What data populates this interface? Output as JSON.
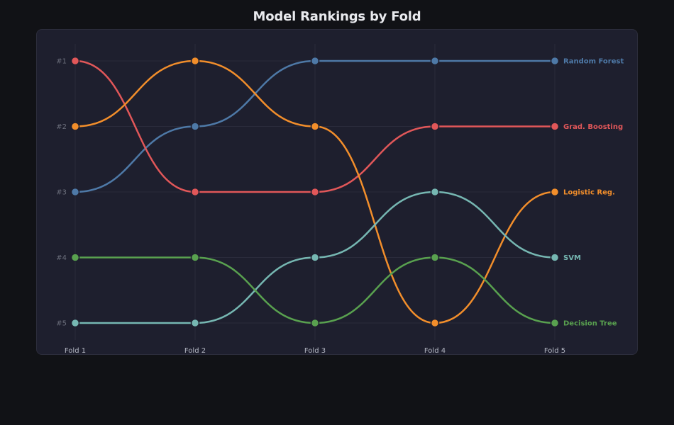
{
  "chart_data": {
    "type": "line",
    "subtype": "bump",
    "title": "Model Rankings by Fold",
    "categories": [
      "Fold 1",
      "Fold 2",
      "Fold 3",
      "Fold 4",
      "Fold 5"
    ],
    "y_ticks": [
      "#1",
      "#2",
      "#3",
      "#4",
      "#5"
    ],
    "ylim": [
      1,
      5
    ],
    "y_inverted": true,
    "grid": true,
    "legend": "end-labels",
    "series": [
      {
        "name": "Random Forest",
        "color": "#4e79a7",
        "values": [
          3,
          2,
          1,
          1,
          1
        ]
      },
      {
        "name": "Grad. Boosting",
        "color": "#e15759",
        "values": [
          1,
          3,
          3,
          2,
          2
        ]
      },
      {
        "name": "Logistic Reg.",
        "color": "#f28e2b",
        "values": [
          2,
          1,
          2,
          5,
          3
        ]
      },
      {
        "name": "SVM",
        "color": "#76b7b2",
        "values": [
          5,
          5,
          4,
          3,
          4
        ]
      },
      {
        "name": "Decision Tree",
        "color": "#59a14f",
        "values": [
          4,
          4,
          5,
          4,
          5
        ]
      }
    ]
  }
}
